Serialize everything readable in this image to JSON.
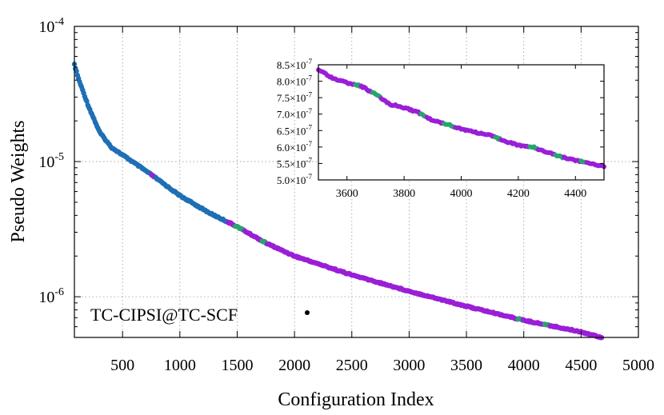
{
  "chart_data": [
    {
      "type": "scatter",
      "title": "",
      "xlabel": "Configuration Index",
      "ylabel": "Pseudo Weights",
      "xlim": [
        80,
        5000
      ],
      "ylim": [
        5e-07,
        0.0001
      ],
      "yscale": "log",
      "grid": true,
      "x_ticks": [
        500,
        1000,
        1500,
        2000,
        2500,
        3000,
        3500,
        4000,
        4500,
        5000
      ],
      "x_tick_labels": [
        "500",
        "1000",
        "1500",
        "2000",
        "2500",
        "3000",
        "3500",
        "4000",
        "4500",
        "5000"
      ],
      "y_ticks": [
        1e-06,
        1e-05,
        0.0001
      ],
      "y_tick_labels": [
        {
          "base": "10",
          "exp": "-6"
        },
        {
          "base": "10",
          "exp": "-5"
        },
        {
          "base": "10",
          "exp": "-4"
        }
      ],
      "legend": {
        "label": "TC-CIPSI@TC-SCF",
        "placement": "bottom-center",
        "color": "#000000"
      },
      "colors": {
        "blue": "#1f6fb5",
        "teal": "#2aa36f",
        "purple": "#9a1fd6"
      },
      "curve": {
        "x": [
          80,
          120,
          200,
          300,
          400,
          500,
          600,
          750,
          1000,
          1250,
          1500,
          1750,
          2000,
          2500,
          3000,
          3500,
          4000,
          4500,
          4680
        ],
        "y": [
          5.2e-05,
          4e-05,
          2.6e-05,
          1.65e-05,
          1.28e-05,
          1.12e-05,
          9.8e-06,
          8e-06,
          5.6e-06,
          4.2e-06,
          3.3e-06,
          2.5e-06,
          2e-06,
          1.45e-06,
          1.1e-06,
          8.5e-07,
          6.7e-07,
          5.5e-07,
          5e-07
        ]
      },
      "color_segments": [
        {
          "color": "blue",
          "from": 80,
          "to": 1750
        },
        {
          "color": "purple",
          "from": 750,
          "to": 790
        },
        {
          "color": "purple",
          "from": 1420,
          "to": 1480
        },
        {
          "color": "teal",
          "from": 1480,
          "to": 1560
        },
        {
          "color": "purple",
          "from": 1560,
          "to": 1710
        },
        {
          "color": "teal",
          "from": 1710,
          "to": 1760
        },
        {
          "color": "purple",
          "from": 1760,
          "to": 4680
        },
        {
          "color": "teal",
          "from": 3950,
          "to": 3990
        },
        {
          "color": "teal",
          "from": 4180,
          "to": 4220
        }
      ]
    },
    {
      "type": "scatter",
      "title": "",
      "xlabel": "",
      "ylabel": "",
      "xlim": [
        3500,
        4500
      ],
      "ylim": [
        5e-07,
        8.5e-07
      ],
      "grid": false,
      "x_ticks": [
        3600,
        3800,
        4000,
        4200,
        4400
      ],
      "x_tick_labels": [
        "3600",
        "3800",
        "4000",
        "4200",
        "4400"
      ],
      "y_ticks": [
        5e-07,
        5.5e-07,
        6e-07,
        6.5e-07,
        7e-07,
        7.5e-07,
        8e-07,
        8.5e-07
      ],
      "y_tick_labels": [
        {
          "base": "5.0×10",
          "exp": "-7"
        },
        {
          "base": "5.5×10",
          "exp": "-7"
        },
        {
          "base": "6.0×10",
          "exp": "-7"
        },
        {
          "base": "6.5×10",
          "exp": "-7"
        },
        {
          "base": "7.0×10",
          "exp": "-7"
        },
        {
          "base": "7.5×10",
          "exp": "-7"
        },
        {
          "base": "8.0×10",
          "exp": "-7"
        },
        {
          "base": "8.5×10",
          "exp": "-7"
        }
      ],
      "curve": {
        "x": [
          3500,
          3550,
          3600,
          3650,
          3700,
          3750,
          3800,
          3850,
          3900,
          3950,
          4000,
          4050,
          4100,
          4150,
          4200,
          4250,
          4300,
          4350,
          4400,
          4450,
          4500
        ],
        "y": [
          8.35e-07,
          8.1e-07,
          7.95e-07,
          7.85e-07,
          7.6e-07,
          7.3e-07,
          7.2e-07,
          7.05e-07,
          6.8e-07,
          6.7e-07,
          6.55e-07,
          6.45e-07,
          6.35e-07,
          6.2e-07,
          6.05e-07,
          6e-07,
          5.85e-07,
          5.7e-07,
          5.6e-07,
          5.5e-07,
          5.42e-07
        ]
      },
      "color_segments": [
        {
          "color": "purple",
          "from": 3500,
          "to": 3630
        },
        {
          "color": "teal",
          "from": 3630,
          "to": 3650
        },
        {
          "color": "purple",
          "from": 3650,
          "to": 3690
        },
        {
          "color": "teal",
          "from": 3690,
          "to": 3720
        },
        {
          "color": "purple",
          "from": 3720,
          "to": 3860
        },
        {
          "color": "teal",
          "from": 3860,
          "to": 3880
        },
        {
          "color": "purple",
          "from": 3880,
          "to": 3940
        },
        {
          "color": "teal",
          "from": 3940,
          "to": 3980
        },
        {
          "color": "purple",
          "from": 3980,
          "to": 4120
        },
        {
          "color": "teal",
          "from": 4120,
          "to": 4140
        },
        {
          "color": "purple",
          "from": 4140,
          "to": 4240
        },
        {
          "color": "teal",
          "from": 4240,
          "to": 4270
        },
        {
          "color": "purple",
          "from": 4270,
          "to": 4330
        },
        {
          "color": "teal",
          "from": 4330,
          "to": 4360
        },
        {
          "color": "purple",
          "from": 4360,
          "to": 4420
        },
        {
          "color": "teal",
          "from": 4420,
          "to": 4440
        },
        {
          "color": "purple",
          "from": 4440,
          "to": 4500
        }
      ]
    }
  ]
}
